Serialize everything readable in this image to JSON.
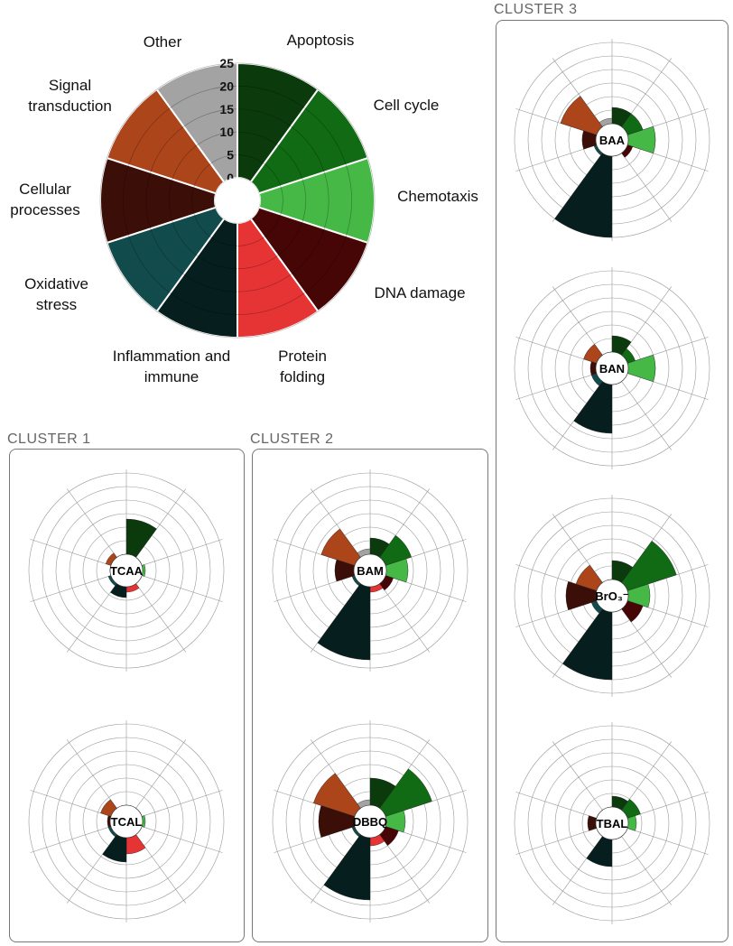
{
  "clusters": [
    "CLUSTER 1",
    "CLUSTER 2",
    "CLUSTER 3"
  ],
  "chart_data": [
    {
      "type": "rose",
      "categories": [
        "Apoptosis",
        "Cell cycle",
        "Chemotaxis",
        "DNA damage",
        "Protein folding",
        "Inflammation and immune",
        "Oxidative stress",
        "Cellular processes",
        "Signal transduction",
        "Other"
      ],
      "values": [
        25,
        25,
        25,
        25,
        25,
        25,
        25,
        25,
        25,
        25
      ],
      "colors": [
        "#0b3a0d",
        "#106b14",
        "#45b846",
        "#470606",
        "#e63334",
        "#061e1e",
        "#124b4b",
        "#3c0e08",
        "#ad451b",
        "#a3a3a3"
      ],
      "ylim": [
        0,
        25
      ],
      "yticks": [
        0,
        5,
        10,
        15,
        20,
        25
      ],
      "grid": true
    },
    {
      "type": "rose",
      "title": "TCAA",
      "cluster": 1,
      "values": [
        13,
        0,
        1,
        0,
        2,
        4,
        1,
        0,
        2,
        0
      ],
      "colors": [
        "#0b3a0d",
        "#106b14",
        "#45b846",
        "#470606",
        "#e63334",
        "#061e1e",
        "#124b4b",
        "#3c0e08",
        "#ad451b",
        "#a3a3a3"
      ],
      "ylim": [
        0,
        30
      ],
      "yticks": [
        0,
        5,
        10,
        15,
        20,
        25,
        30
      ],
      "grid": true
    },
    {
      "type": "rose",
      "title": "TCAL",
      "cluster": 1,
      "values": [
        0,
        0,
        1,
        0,
        6,
        9,
        1,
        1,
        4,
        0
      ],
      "colors": [
        "#0b3a0d",
        "#106b14",
        "#45b846",
        "#470606",
        "#e63334",
        "#061e1e",
        "#124b4b",
        "#3c0e08",
        "#ad451b",
        "#a3a3a3"
      ],
      "ylim": [
        0,
        30
      ],
      "yticks": [
        0,
        5,
        10,
        15,
        20,
        25,
        30
      ],
      "grid": true
    },
    {
      "type": "rose",
      "title": "BAM",
      "cluster": 2,
      "values": [
        6,
        10,
        8,
        3,
        2,
        27,
        1,
        7,
        13,
        2
      ],
      "colors": [
        "#0b3a0d",
        "#106b14",
        "#45b846",
        "#470606",
        "#e63334",
        "#061e1e",
        "#124b4b",
        "#3c0e08",
        "#ad451b",
        "#a3a3a3"
      ],
      "ylim": [
        0,
        30
      ],
      "yticks": [
        0,
        5,
        10,
        15,
        20,
        25,
        30
      ],
      "grid": true
    },
    {
      "type": "rose",
      "title": "DBBQ",
      "cluster": 2,
      "values": [
        10,
        18,
        7,
        5,
        3,
        23,
        1,
        13,
        16,
        2
      ],
      "colors": [
        "#0b3a0d",
        "#106b14",
        "#45b846",
        "#470606",
        "#e63334",
        "#061e1e",
        "#124b4b",
        "#3c0e08",
        "#ad451b",
        "#a3a3a3"
      ],
      "ylim": [
        0,
        30
      ],
      "yticks": [
        0,
        5,
        10,
        15,
        20,
        25,
        30
      ],
      "grid": true
    },
    {
      "type": "rose",
      "title": "BAA",
      "cluster": 3,
      "values": [
        6,
        6,
        10,
        2,
        0,
        30,
        1,
        5,
        14,
        2
      ],
      "colors": [
        "#0b3a0d",
        "#106b14",
        "#45b846",
        "#470606",
        "#e63334",
        "#061e1e",
        "#124b4b",
        "#3c0e08",
        "#ad451b",
        "#a3a3a3"
      ],
      "ylim": [
        0,
        30
      ],
      "yticks": [
        0,
        5,
        10,
        15,
        20,
        25,
        30
      ],
      "grid": true
    },
    {
      "type": "rose",
      "title": "BAN",
      "cluster": 3,
      "values": [
        6,
        3,
        10,
        0,
        0,
        18,
        2,
        2,
        5,
        0
      ],
      "colors": [
        "#0b3a0d",
        "#106b14",
        "#45b846",
        "#470606",
        "#e63334",
        "#061e1e",
        "#124b4b",
        "#3c0e08",
        "#ad451b",
        "#a3a3a3"
      ],
      "ylim": [
        0,
        30
      ],
      "yticks": [
        0,
        5,
        10,
        15,
        20,
        25,
        30
      ],
      "grid": true
    },
    {
      "type": "rose",
      "title": "BrO₃⁻",
      "cluster": 3,
      "values": [
        7,
        19,
        8,
        6,
        0,
        25,
        2,
        11,
        8,
        0
      ],
      "colors": [
        "#0b3a0d",
        "#106b14",
        "#45b846",
        "#470606",
        "#e63334",
        "#061e1e",
        "#124b4b",
        "#3c0e08",
        "#ad451b",
        "#a3a3a3"
      ],
      "ylim": [
        0,
        30
      ],
      "yticks": [
        0,
        5,
        10,
        15,
        20,
        25,
        30
      ],
      "grid": true
    },
    {
      "type": "rose",
      "title": "TBAL",
      "cluster": 3,
      "values": [
        4,
        5,
        3,
        0,
        0,
        10,
        0,
        3,
        0,
        0
      ],
      "colors": [
        "#0b3a0d",
        "#106b14",
        "#45b846",
        "#470606",
        "#e63334",
        "#061e1e",
        "#124b4b",
        "#3c0e08",
        "#ad451b",
        "#a3a3a3"
      ],
      "ylim": [
        0,
        30
      ],
      "yticks": [
        0,
        5,
        10,
        15,
        20,
        25,
        30
      ],
      "grid": true
    }
  ]
}
